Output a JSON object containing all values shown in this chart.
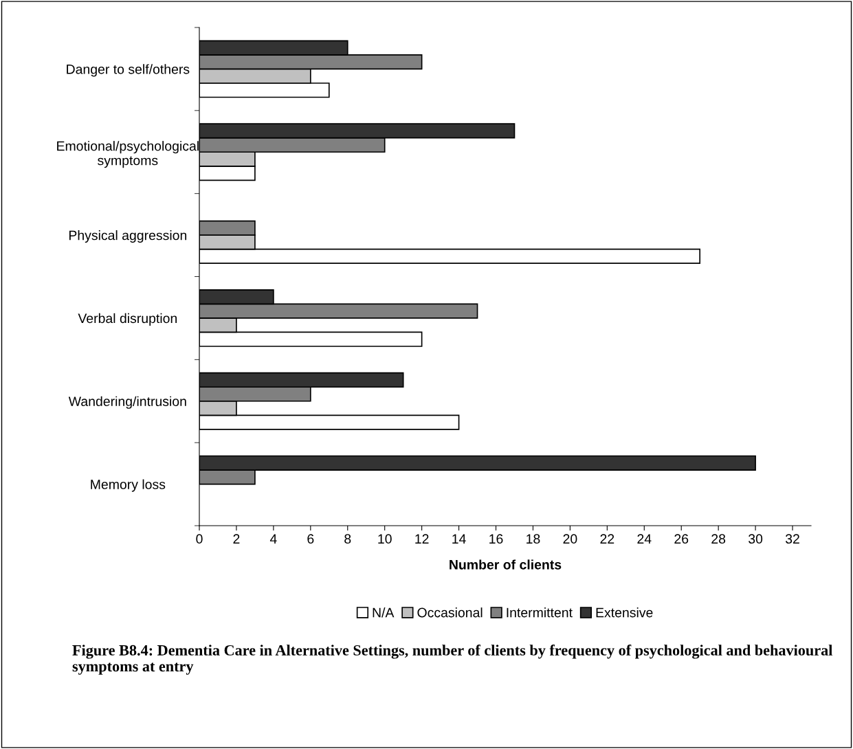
{
  "chart_data": {
    "type": "bar",
    "orientation": "horizontal",
    "categories": [
      "Danger to self/others",
      "Emotional/psychological\nsymptoms",
      "Physical aggression",
      "Verbal disruption",
      "Wandering/intrusion",
      "Memory loss"
    ],
    "series": [
      {
        "name": "N/A",
        "color": "#ffffff",
        "values": [
          7,
          3,
          27,
          12,
          14,
          null
        ]
      },
      {
        "name": "Occasional",
        "color": "#c0c0c0",
        "values": [
          6,
          3,
          3,
          2,
          2,
          null
        ]
      },
      {
        "name": "Intermittent",
        "color": "#808080",
        "values": [
          12,
          10,
          3,
          15,
          6,
          3
        ]
      },
      {
        "name": "Extensive",
        "color": "#333333",
        "values": [
          8,
          17,
          null,
          4,
          11,
          30
        ]
      }
    ],
    "xlabel": "Number of clients",
    "xlim": [
      0,
      33
    ],
    "xticks": [
      0,
      2,
      4,
      6,
      8,
      10,
      12,
      14,
      16,
      18,
      20,
      22,
      24,
      26,
      28,
      30,
      32
    ],
    "grid": false,
    "legend": "bottom",
    "annotations": [
      "Figure B8.4: Dementia Care in Alternative Settings, number of clients by frequency of psychological and behavioural symptoms at entry"
    ]
  }
}
